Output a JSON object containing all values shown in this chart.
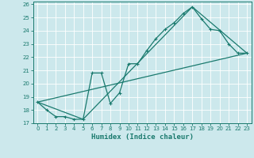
{
  "xlabel": "Humidex (Indice chaleur)",
  "bg_color": "#cce8ec",
  "line_color": "#1a7a6e",
  "grid_color": "#ffffff",
  "xlim": [
    -0.5,
    23.5
  ],
  "ylim": [
    17,
    26.2
  ],
  "xticks": [
    0,
    1,
    2,
    3,
    4,
    5,
    6,
    7,
    8,
    9,
    10,
    11,
    12,
    13,
    14,
    15,
    16,
    17,
    18,
    19,
    20,
    21,
    22,
    23
  ],
  "yticks": [
    17,
    18,
    19,
    20,
    21,
    22,
    23,
    24,
    25,
    26
  ],
  "line_main": {
    "x": [
      0,
      1,
      2,
      3,
      4,
      5,
      6,
      7,
      8,
      9,
      10,
      11,
      12,
      13,
      14,
      15,
      16,
      17,
      18,
      19,
      20,
      21,
      22,
      23
    ],
    "y": [
      18.6,
      18.0,
      17.5,
      17.5,
      17.3,
      17.3,
      20.8,
      20.8,
      18.5,
      19.3,
      21.5,
      21.5,
      22.5,
      23.4,
      24.1,
      24.6,
      25.3,
      25.8,
      24.9,
      24.1,
      24.0,
      23.0,
      22.3,
      22.3
    ]
  },
  "line_straight": {
    "x": [
      0,
      23
    ],
    "y": [
      18.6,
      22.3
    ]
  },
  "line_triangle": {
    "x": [
      0,
      5,
      17,
      23
    ],
    "y": [
      18.6,
      17.3,
      25.8,
      22.3
    ]
  }
}
